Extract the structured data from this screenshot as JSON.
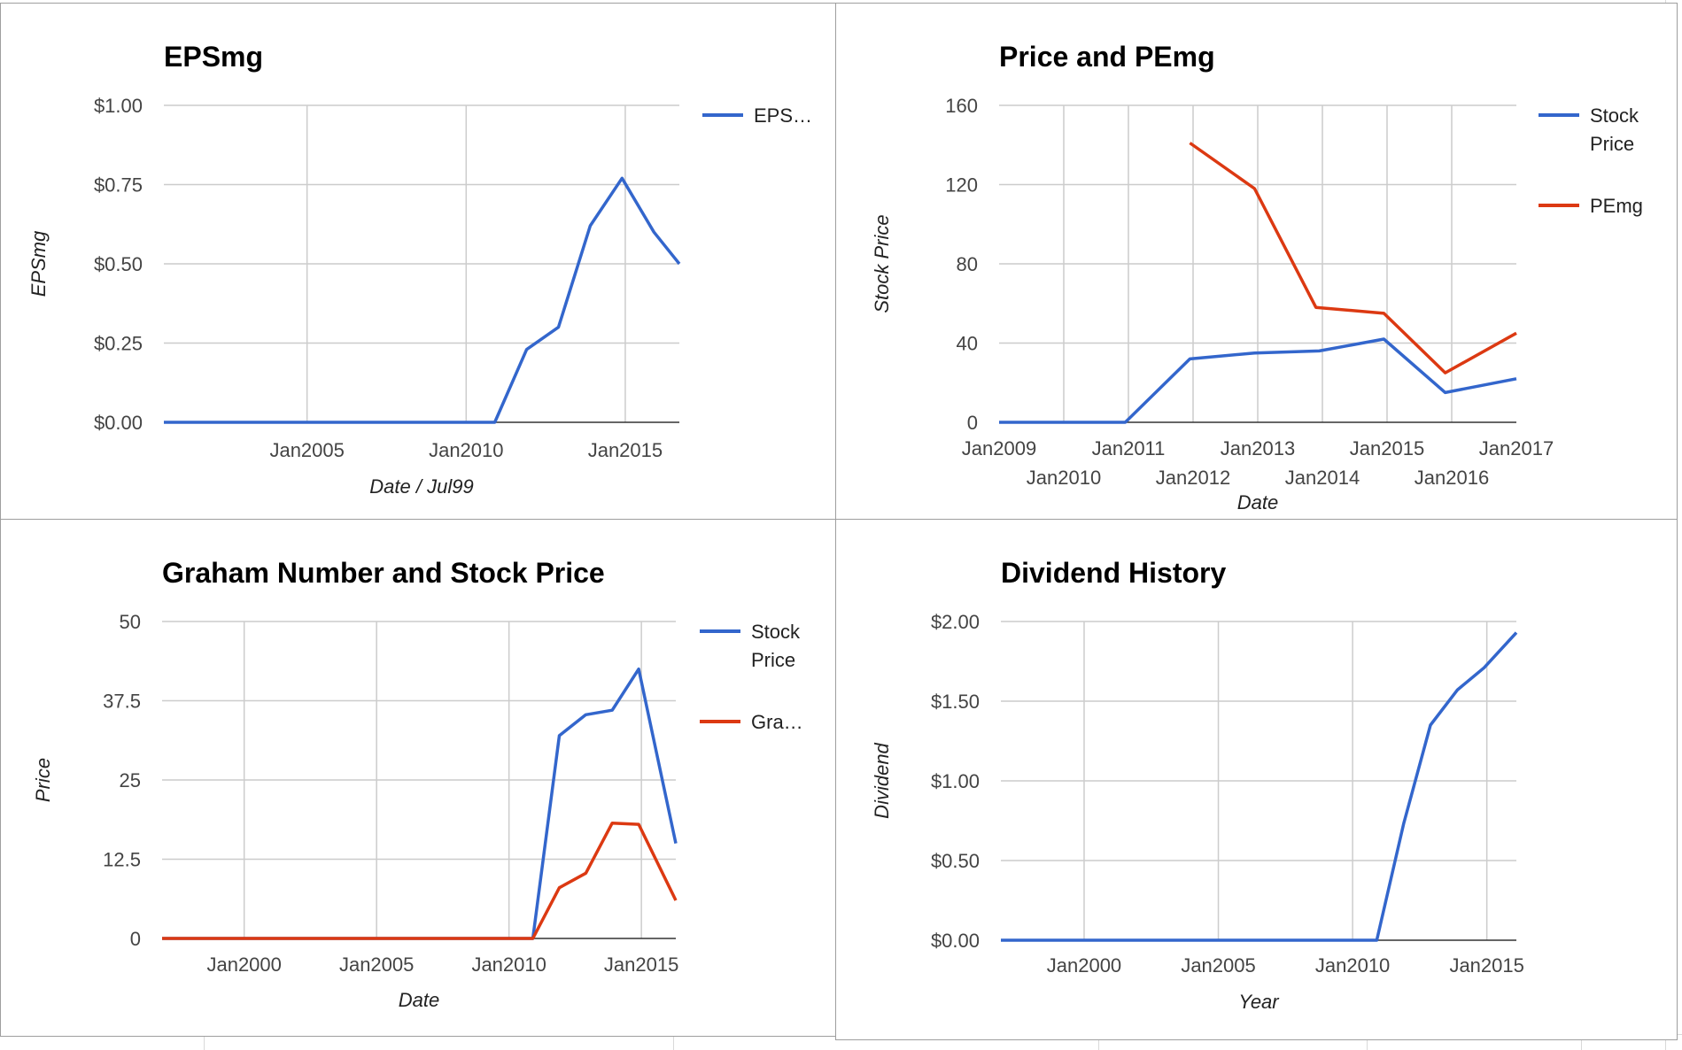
{
  "colors": {
    "blue": "#3366cc",
    "red": "#dc3912",
    "grid": "#cccccc",
    "baseline": "#333333"
  },
  "chart_data": [
    {
      "type": "line",
      "title": "EPSmg",
      "xlabel": "Date / Jul99",
      "ylabel": "EPSmg",
      "xlim": [
        2000.5,
        2016.7
      ],
      "ylim": [
        0,
        1
      ],
      "yticks": [
        0,
        0.25,
        0.5,
        0.75,
        1
      ],
      "ytick_labels": [
        "$0.00",
        "$0.25",
        "$0.50",
        "$0.75",
        "$1.00"
      ],
      "xticks": [
        2005,
        2010,
        2015
      ],
      "xtick_labels": [
        "Jan2005",
        "Jan2010",
        "Jan2015"
      ],
      "grid": true,
      "legend": "right",
      "series": [
        {
          "name": "EPS…",
          "color": "#3366cc",
          "x": [
            2000.5,
            2010.9,
            2011.9,
            2012.9,
            2013.9,
            2014.9,
            2015.9,
            2016.7
          ],
          "values": [
            0,
            0,
            0.23,
            0.3,
            0.62,
            0.77,
            0.6,
            0.5
          ]
        }
      ]
    },
    {
      "type": "line",
      "title": "Price and PEmg",
      "xlabel": "Date",
      "ylabel": "Stock Price",
      "xlim": [
        2009,
        2017
      ],
      "ylim": [
        0,
        160
      ],
      "yticks": [
        0,
        40,
        80,
        120,
        160
      ],
      "ytick_labels": [
        "0",
        "40",
        "80",
        "120",
        "160"
      ],
      "xticks": [
        2009,
        2010,
        2011,
        2012,
        2013,
        2014,
        2015,
        2016,
        2017
      ],
      "xtick_labels": [
        "Jan2009",
        "Jan2010",
        "Jan2011",
        "Jan2012",
        "Jan2013",
        "Jan2014",
        "Jan2015",
        "Jan2016",
        "Jan2017"
      ],
      "grid": true,
      "legend": "right",
      "series": [
        {
          "name": "Stock Price",
          "color": "#3366cc",
          "x": [
            2009,
            2010.95,
            2011.95,
            2012.95,
            2013.95,
            2014.95,
            2015.9,
            2017
          ],
          "values": [
            0,
            0,
            32,
            35,
            36,
            42,
            15,
            22
          ]
        },
        {
          "name": "PEmg",
          "color": "#dc3912",
          "x": [
            2011.95,
            2012.95,
            2013.9,
            2014.95,
            2015.9,
            2017
          ],
          "values": [
            141,
            118,
            58,
            55,
            25,
            45
          ]
        }
      ]
    },
    {
      "type": "line",
      "title": "Graham Number and Stock Price",
      "xlabel": "Date",
      "ylabel": "Price",
      "xlim": [
        1996.9,
        2016.3
      ],
      "ylim": [
        0,
        50
      ],
      "yticks": [
        0,
        12.5,
        25,
        37.5,
        50
      ],
      "ytick_labels": [
        "0",
        "12.5",
        "25",
        "37.5",
        "50"
      ],
      "xticks": [
        2000,
        2005,
        2010,
        2015
      ],
      "xtick_labels": [
        "Jan2000",
        "Jan2005",
        "Jan2010",
        "Jan2015"
      ],
      "grid": true,
      "legend": "right",
      "series": [
        {
          "name": "Stock Price",
          "color": "#3366cc",
          "x": [
            1996.9,
            2010.9,
            2011.9,
            2012.9,
            2013.9,
            2014.9,
            2016.3
          ],
          "values": [
            0,
            0,
            32,
            35.3,
            36,
            42.5,
            15
          ]
        },
        {
          "name": "Gra…",
          "color": "#dc3912",
          "x": [
            1996.9,
            2010.9,
            2011.9,
            2012.9,
            2013.9,
            2014.9,
            2016.3
          ],
          "values": [
            0,
            0,
            8,
            10.3,
            18.2,
            18,
            6
          ]
        }
      ]
    },
    {
      "type": "line",
      "title": "Dividend History",
      "xlabel": "Year",
      "ylabel": "Dividend",
      "xlim": [
        1996.9,
        2016.1
      ],
      "ylim": [
        0,
        2
      ],
      "yticks": [
        0,
        0.5,
        1,
        1.5,
        2
      ],
      "ytick_labels": [
        "$0.00",
        "$0.50",
        "$1.00",
        "$1.50",
        "$2.00"
      ],
      "xticks": [
        2000,
        2005,
        2010,
        2015
      ],
      "xtick_labels": [
        "Jan2000",
        "Jan2005",
        "Jan2010",
        "Jan2015"
      ],
      "grid": true,
      "legend": "none",
      "series": [
        {
          "color": "#3366cc",
          "x": [
            1996.9,
            2010.9,
            2011.9,
            2012.9,
            2013.9,
            2014.9,
            2016.1
          ],
          "values": [
            0,
            0,
            0.73,
            1.35,
            1.57,
            1.71,
            1.93
          ]
        }
      ]
    }
  ]
}
